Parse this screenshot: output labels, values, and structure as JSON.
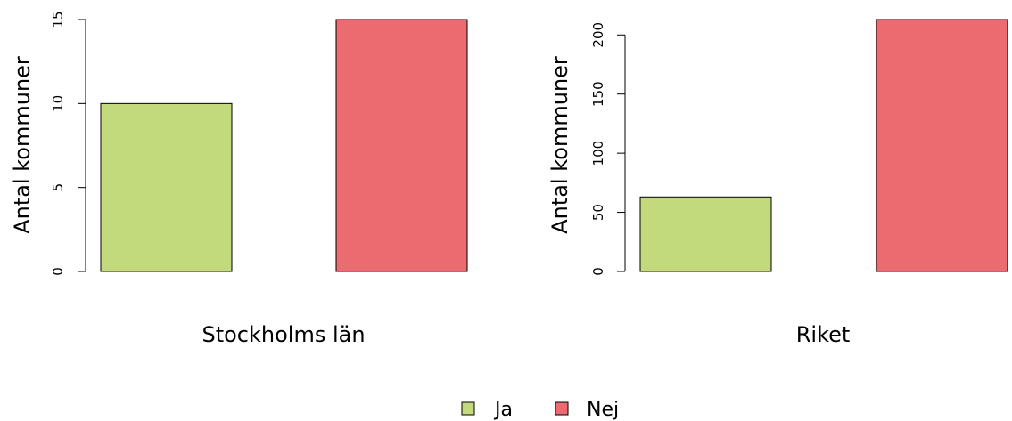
{
  "legend": {
    "items": [
      {
        "label": "Ja",
        "color": "#c2da7c"
      },
      {
        "label": "Nej",
        "color": "#ec6b71"
      }
    ]
  },
  "chart_data": [
    {
      "type": "bar",
      "categories": [
        "Ja",
        "Nej"
      ],
      "values": [
        10,
        15
      ],
      "colors": [
        "#c2da7c",
        "#ec6b71"
      ],
      "xlabel": "Stockholms län",
      "ylabel": "Antal kommuner",
      "ylim": [
        0,
        15
      ],
      "yticks": [
        0,
        5,
        10,
        15
      ]
    },
    {
      "type": "bar",
      "categories": [
        "Ja",
        "Nej"
      ],
      "values": [
        63,
        213
      ],
      "colors": [
        "#c2da7c",
        "#ec6b71"
      ],
      "xlabel": "Riket",
      "ylabel": "Antal kommuner",
      "ylim": [
        0,
        213
      ],
      "yticks": [
        0,
        50,
        100,
        150,
        200
      ]
    }
  ]
}
